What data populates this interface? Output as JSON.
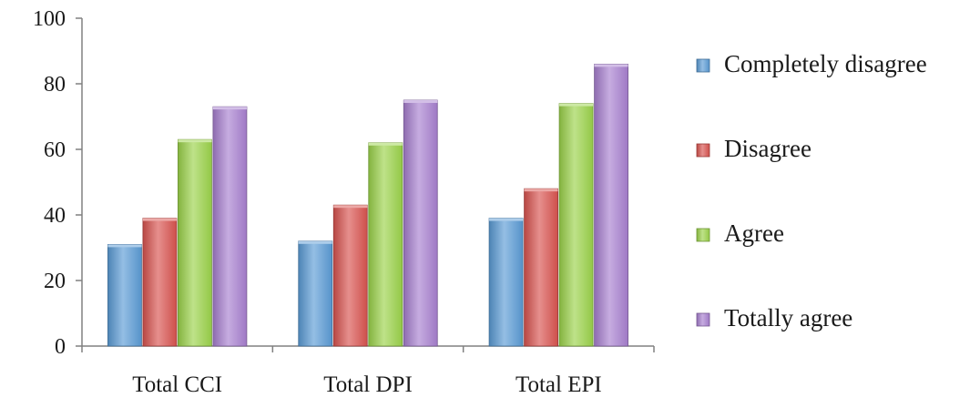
{
  "chart_data": {
    "type": "bar",
    "categories": [
      "Total CCI",
      "Total DPI",
      "Total EPI"
    ],
    "series": [
      {
        "name": "Completely disagree",
        "values": [
          31,
          32,
          39
        ],
        "color": "#5b9bd5"
      },
      {
        "name": "Disagree",
        "values": [
          39,
          43,
          48
        ],
        "color": "#d9534f"
      },
      {
        "name": "Agree",
        "values": [
          63,
          62,
          74
        ],
        "color": "#9bd34a"
      },
      {
        "name": "Totally agree",
        "values": [
          73,
          75,
          86
        ],
        "color": "#a77fcf"
      }
    ],
    "ylim": [
      0,
      100
    ],
    "yticks": [
      0,
      20,
      40,
      60,
      80,
      100
    ],
    "grid": false,
    "legend_position": "right",
    "title": "",
    "xlabel": "",
    "ylabel": ""
  }
}
